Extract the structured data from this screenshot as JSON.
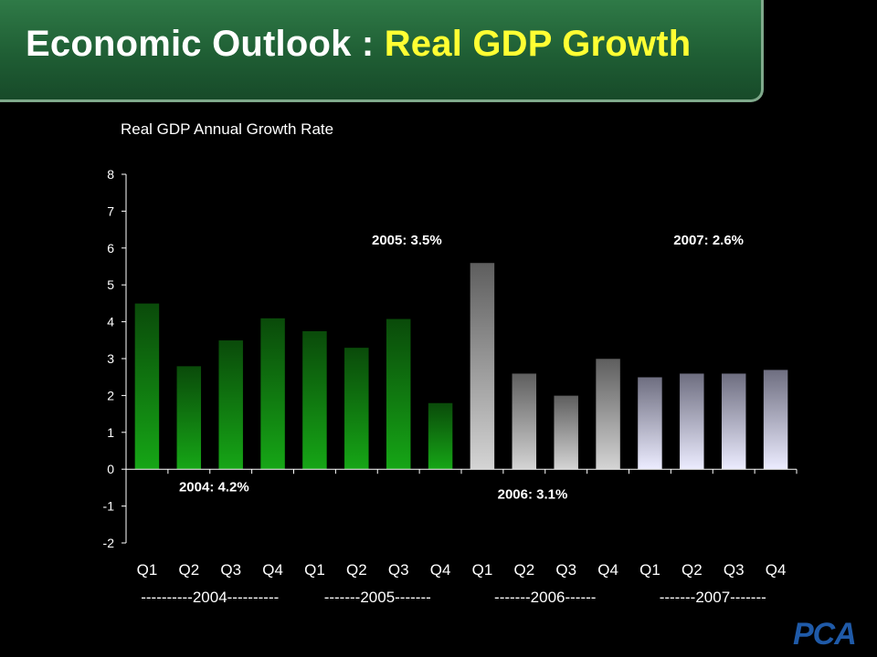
{
  "header": {
    "title_main": "Economic Outlook : ",
    "title_highlight": "Real GDP Growth"
  },
  "logo_text": "PCA",
  "chart_data": {
    "type": "bar",
    "title": "Real GDP Annual Growth Rate",
    "xlabel": "",
    "ylabel": "",
    "ylim": [
      -2,
      8
    ],
    "yticks": [
      "-2",
      "-1",
      "0",
      "1",
      "2",
      "3",
      "4",
      "5",
      "6",
      "7",
      "8"
    ],
    "categories": [
      "Q1",
      "Q2",
      "Q3",
      "Q4",
      "Q1",
      "Q2",
      "Q3",
      "Q4",
      "Q1",
      "Q2",
      "Q3",
      "Q4",
      "Q1",
      "Q2",
      "Q3",
      "Q4"
    ],
    "values": [
      4.5,
      2.8,
      3.5,
      4.1,
      3.75,
      3.3,
      4.08,
      1.8,
      5.6,
      2.6,
      2.0,
      3.0,
      2.5,
      2.6,
      2.6,
      2.7
    ],
    "groups": [
      {
        "label": "----------2004----------",
        "start": 0,
        "end": 3,
        "color": "green"
      },
      {
        "label": "-------2005-------",
        "start": 4,
        "end": 7,
        "color": "green"
      },
      {
        "label": "-------2006------",
        "start": 8,
        "end": 11,
        "color": "gray"
      },
      {
        "label": "-------2007-------",
        "start": 12,
        "end": 15,
        "color": "lavender"
      }
    ],
    "annotations": [
      {
        "text": "2004: 4.2%",
        "x": 1.6,
        "y": -0.6
      },
      {
        "text": "2005: 3.5%",
        "x": 6.2,
        "y": 6.1
      },
      {
        "text": "2006: 3.1%",
        "x": 9.2,
        "y": -0.8
      },
      {
        "text": "2007: 2.6%",
        "x": 13.4,
        "y": 6.1
      }
    ],
    "colors": {
      "green_top": "#0a4a0a",
      "green_bottom": "#16a616",
      "gray_top": "#5e5e5e",
      "gray_bottom": "#d4d4d4",
      "lav_top": "#6e6e80",
      "lav_bottom": "#ececff"
    },
    "grid": false,
    "legend": "none"
  }
}
